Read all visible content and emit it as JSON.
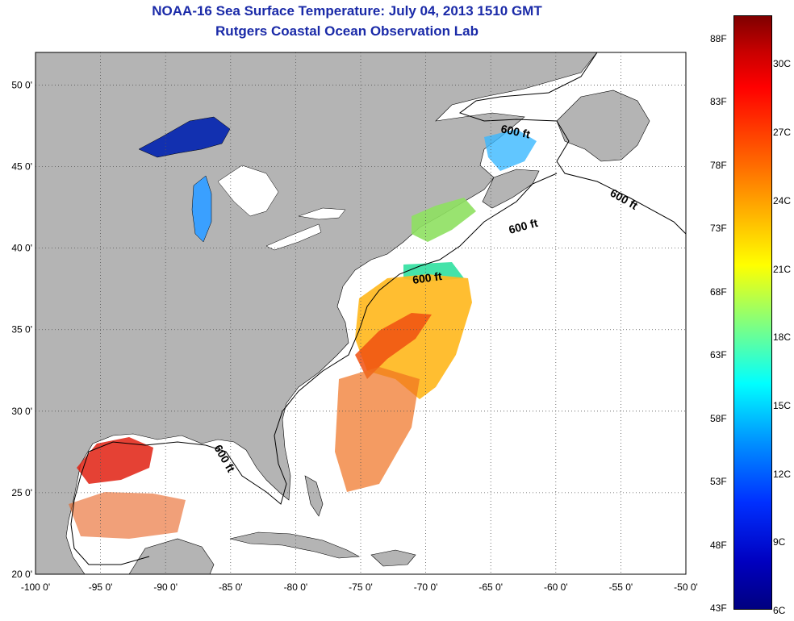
{
  "title": {
    "line1": "NOAA-16 Sea Surface Temperature:  July 04, 2013 1510 GMT",
    "line2": "Rutgers Coastal Ocean Observation Lab"
  },
  "map": {
    "lon_range": [
      -100,
      -50
    ],
    "lat_range": [
      20,
      52
    ],
    "x_ticks": [
      "-100 0'",
      "-95 0'",
      "-90 0'",
      "-85 0'",
      "-80 0'",
      "-75 0'",
      "-70 0'",
      "-65 0'",
      "-60 0'",
      "-55 0'",
      "-50 0'"
    ],
    "y_ticks": [
      "50 0'",
      "45 0'",
      "40 0'",
      "35 0'",
      "30 0'",
      "25 0'",
      "20 0'"
    ],
    "contour_labels": [
      "600 ft",
      "600 ft",
      "600 ft",
      "600 ft",
      "600 ft"
    ],
    "land_color": "#b4b4b4",
    "ocean_color": "#ffffff",
    "grid": "dotted"
  },
  "colorbar": {
    "fahrenheit": [
      "88F",
      "83F",
      "78F",
      "73F",
      "68F",
      "63F",
      "58F",
      "53F",
      "48F",
      "43F"
    ],
    "celsius": [
      "30C",
      "27C",
      "24C",
      "21C",
      "18C",
      "15C",
      "12C",
      "9C",
      "6C"
    ]
  }
}
